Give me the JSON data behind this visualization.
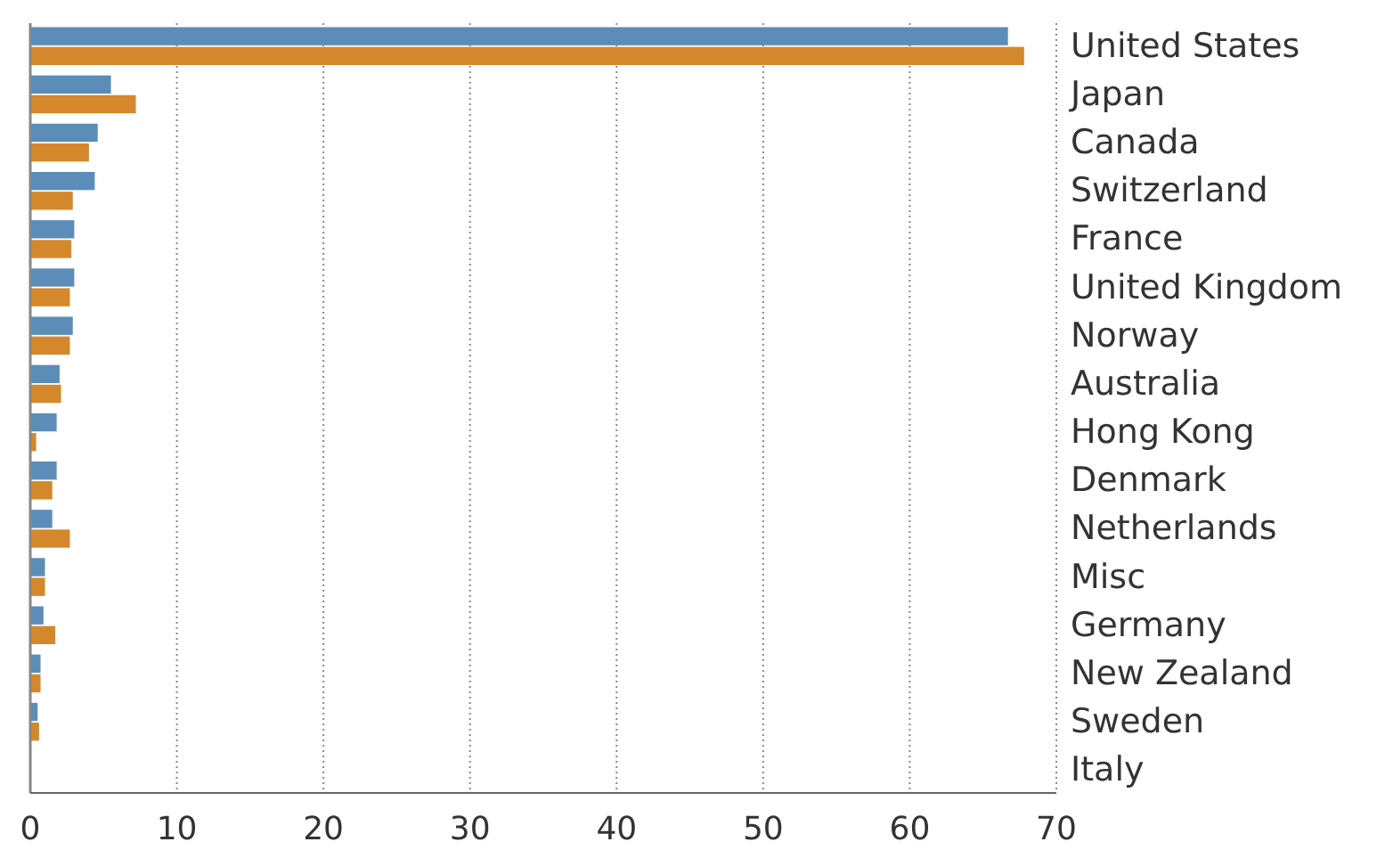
{
  "chart_data": {
    "type": "bar",
    "orientation": "horizontal",
    "categories": [
      "United States",
      "Japan",
      "Canada",
      "Switzerland",
      "France",
      "United Kingdom",
      "Norway",
      "Australia",
      "Hong Kong",
      "Denmark",
      "Netherlands",
      "Misc",
      "Germany",
      "New Zealand",
      "Sweden",
      "Italy"
    ],
    "series": [
      {
        "color": "#5b8db8",
        "values": [
          66.7,
          5.5,
          4.6,
          4.4,
          3.0,
          3.0,
          2.9,
          2.0,
          1.8,
          1.8,
          1.5,
          1.0,
          0.9,
          0.7,
          0.5,
          null
        ]
      },
      {
        "color": "#d4882b",
        "values": [
          67.8,
          7.2,
          4.0,
          2.9,
          2.8,
          2.7,
          2.7,
          2.1,
          0.4,
          1.5,
          2.7,
          1.0,
          1.7,
          0.7,
          0.6,
          null
        ]
      }
    ],
    "xlim": [
      0,
      70
    ],
    "xticks": [
      0,
      10,
      20,
      30,
      40,
      50,
      60,
      70
    ],
    "grid": "x"
  }
}
